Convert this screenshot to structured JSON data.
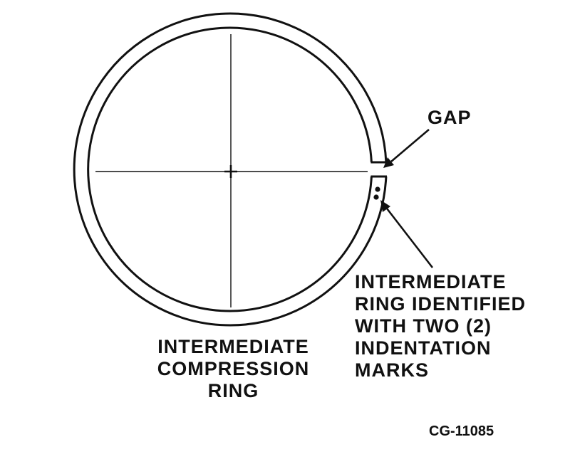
{
  "labels": {
    "gap": "GAP",
    "indentation": [
      "INTERMEDIATE",
      "RING IDENTIFIED",
      "WITH TWO (2)",
      "INDENTATION",
      "MARKS"
    ],
    "ring": [
      "INTERMEDIATE",
      "COMPRESSION",
      "RING"
    ],
    "figure_id": "CG-11085"
  },
  "colors": {
    "ink": "#111111",
    "background": "#ffffff"
  },
  "indentation_mark_count": 2
}
